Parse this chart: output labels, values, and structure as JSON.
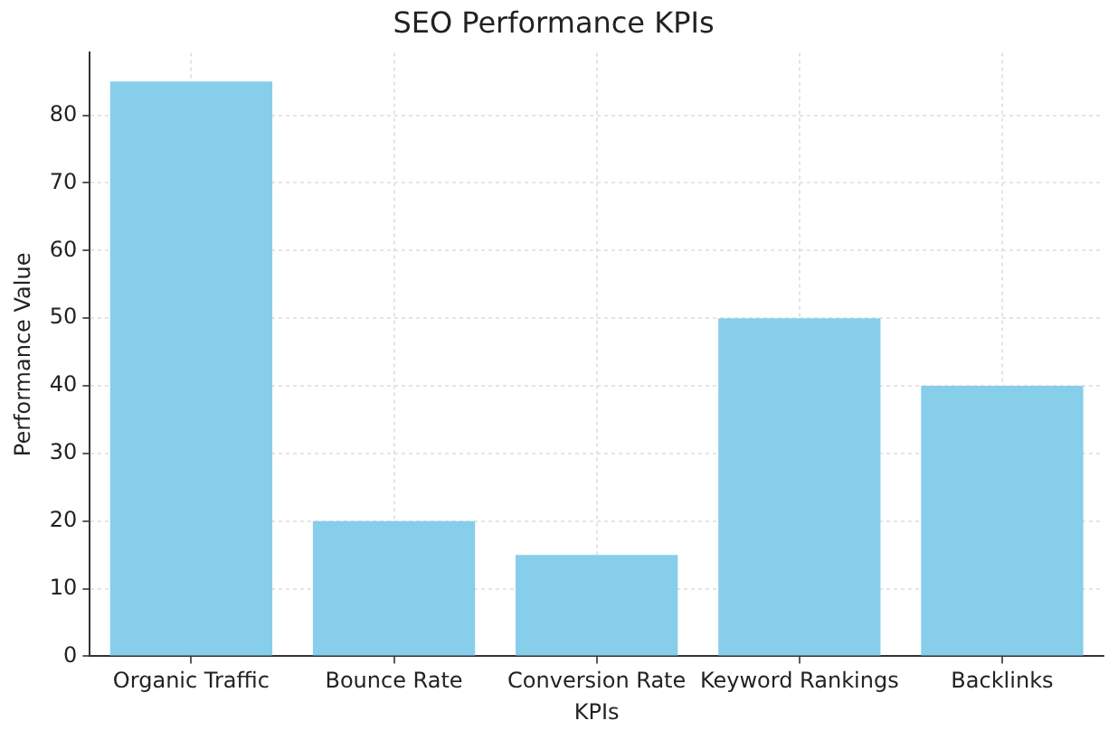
{
  "chart_data": {
    "type": "bar",
    "title": "SEO Performance KPIs",
    "xlabel": "KPIs",
    "ylabel": "Performance Value",
    "categories": [
      "Organic Traffic",
      "Bounce Rate",
      "Conversion Rate",
      "Keyword Rankings",
      "Backlinks"
    ],
    "values": [
      85,
      20,
      15,
      50,
      40
    ],
    "color": "#87ceeb",
    "ylim": [
      0,
      89.25
    ],
    "yticks": [
      0,
      10,
      20,
      30,
      40,
      50,
      60,
      70,
      80
    ],
    "grid": true
  }
}
